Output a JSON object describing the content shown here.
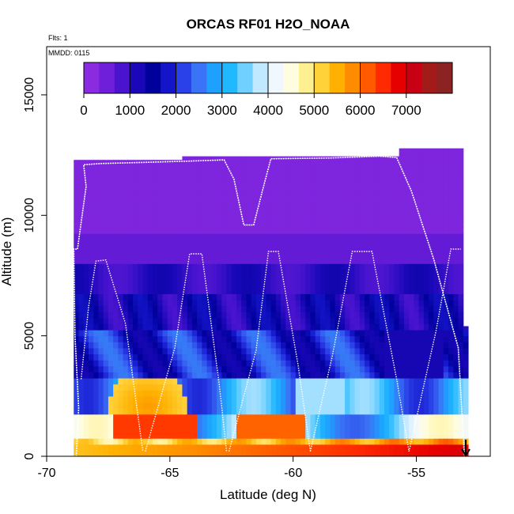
{
  "chart_data": {
    "type": "heatmap",
    "title": "ORCAS RF01 H2O_NOAA",
    "xlabel": "Latitude (deg N)",
    "ylabel": "Altitude (m)",
    "xlim": [
      -70,
      -52
    ],
    "ylim": [
      0,
      17000
    ],
    "x_ticks": [
      -70,
      -65,
      -60,
      -55
    ],
    "x_tick_labels": [
      "-70",
      "-65",
      "-60",
      "-55"
    ],
    "y_ticks": [
      0,
      5000,
      10000,
      15000
    ],
    "y_tick_labels": [
      "0",
      "5000",
      "10000",
      "15000"
    ],
    "annotations": {
      "flights": "Flts: 1",
      "date": "MMDD: 0115"
    },
    "colorbar": {
      "range": [
        0,
        8000
      ],
      "ticks": [
        0,
        1000,
        2000,
        3000,
        4000,
        5000,
        6000,
        7000
      ],
      "tick_labels": [
        "0",
        "1000",
        "2000",
        "3000",
        "4000",
        "5000",
        "6000",
        "7000"
      ],
      "colors": [
        "#8a2be2",
        "#6f1ed9",
        "#4a14cf",
        "#1a08b8",
        "#00009a",
        "#1414c8",
        "#2a40e8",
        "#3a73f5",
        "#1ea0ff",
        "#20b8ff",
        "#70d0ff",
        "#c0e8ff",
        "#f0f8ff",
        "#fffde0",
        "#ffef90",
        "#ffd23a",
        "#ffb000",
        "#ff8c00",
        "#ff5a00",
        "#ff2a00",
        "#e60000",
        "#c80014",
        "#a31a1a",
        "#8b2323"
      ]
    },
    "flight_track": [
      [
        -68.8,
        0
      ],
      [
        -68.7,
        2000
      ],
      [
        -68.85,
        5000
      ],
      [
        -68.9,
        8600
      ],
      [
        -68.75,
        8600
      ],
      [
        -68.4,
        11200
      ],
      [
        -68.5,
        12100
      ],
      [
        -67.8,
        12150
      ],
      [
        -66,
        12200
      ],
      [
        -64.2,
        12250
      ],
      [
        -62.8,
        12300
      ],
      [
        -62.4,
        11500
      ],
      [
        -62,
        9600
      ],
      [
        -61.6,
        9600
      ],
      [
        -61.2,
        11200
      ],
      [
        -60.9,
        12350
      ],
      [
        -58.5,
        12380
      ],
      [
        -56.5,
        12450
      ],
      [
        -55.8,
        12400
      ],
      [
        -55.2,
        11000
      ],
      [
        -54.3,
        8200
      ],
      [
        -53.3,
        4500
      ],
      [
        -53.05,
        0
      ]
    ],
    "profiles": [
      [
        [
          -68.6,
          3200
        ],
        [
          -68.3,
          6200
        ],
        [
          -68.0,
          8100
        ],
        [
          -67.6,
          8150
        ],
        [
          -66.8,
          5500
        ],
        [
          -66.1,
          200
        ]
      ],
      [
        [
          -66.0,
          200
        ],
        [
          -64.8,
          4500
        ],
        [
          -64.2,
          8400
        ],
        [
          -63.7,
          8400
        ],
        [
          -63.0,
          3000
        ],
        [
          -62.7,
          200
        ]
      ],
      [
        [
          -62.6,
          200
        ],
        [
          -61.5,
          4400
        ],
        [
          -61.0,
          8500
        ],
        [
          -60.6,
          8500
        ],
        [
          -59.8,
          3800
        ],
        [
          -59.3,
          200
        ]
      ],
      [
        [
          -59.3,
          200
        ],
        [
          -58.4,
          4200
        ],
        [
          -57.6,
          8500
        ],
        [
          -56.8,
          8500
        ],
        [
          -55.8,
          3200
        ],
        [
          -55.3,
          200
        ]
      ],
      [
        [
          -55.3,
          200
        ],
        [
          -54.2,
          5200
        ],
        [
          -53.6,
          8600
        ],
        [
          -53.2,
          8600
        ]
      ]
    ],
    "grid": false,
    "legend": "top-inside"
  }
}
